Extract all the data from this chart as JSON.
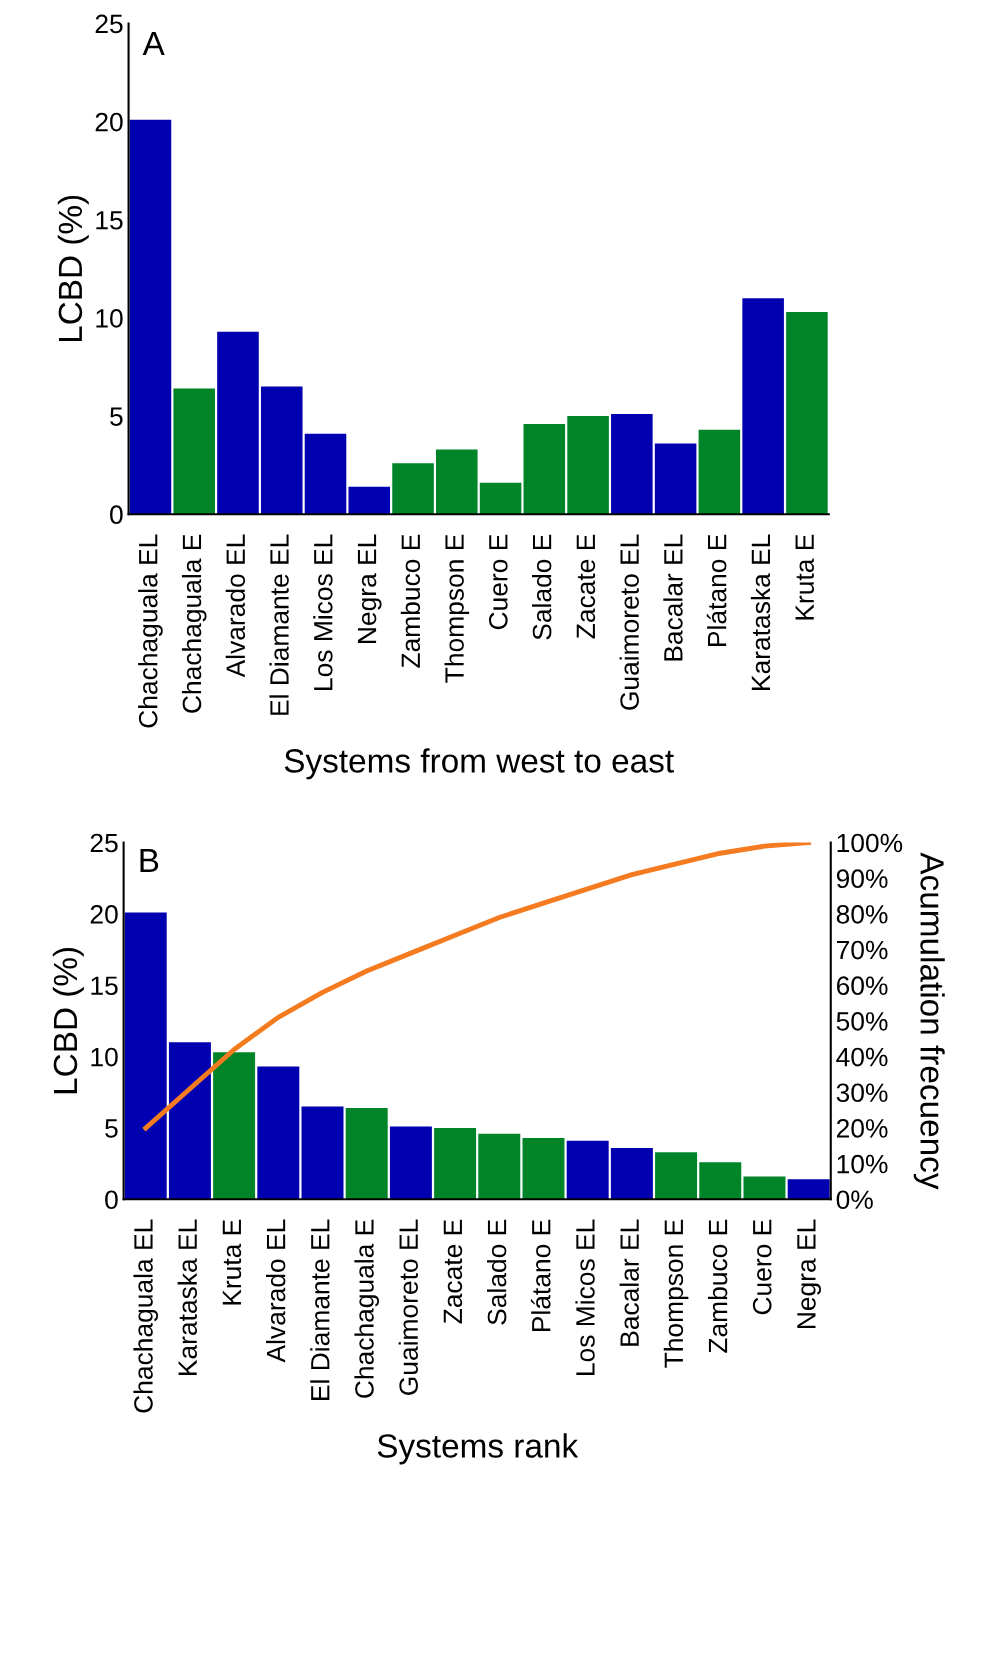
{
  "chart_data": [
    {
      "type": "bar",
      "annotations": [
        "A"
      ],
      "xlabel": "Systems from west to east",
      "ylabel": "LCBD (%)",
      "categories": [
        "Chachaguala EL",
        "Chachaguala E",
        "Alvarado EL",
        "El Diamante EL",
        "Los Micos EL",
        "Negra EL",
        "Zambuco E",
        "Thompson E",
        "Cuero E",
        "Salado E",
        "Zacate E",
        "Guaimoreto EL",
        "Bacalar EL",
        "Plátano E",
        "Karataska EL",
        "Kruta E"
      ],
      "values": [
        20.1,
        6.4,
        9.3,
        6.5,
        4.1,
        1.4,
        2.6,
        3.3,
        1.6,
        4.6,
        5.0,
        5.1,
        3.6,
        4.3,
        11.0,
        10.3
      ],
      "colors": [
        "#0000b0",
        "#008428",
        "#0000b0",
        "#0000b0",
        "#0000b0",
        "#0000b0",
        "#008428",
        "#008428",
        "#008428",
        "#008428",
        "#008428",
        "#0000b0",
        "#0000b0",
        "#008428",
        "#0000b0",
        "#008428"
      ],
      "ylim": [
        0,
        25
      ],
      "yticks": [
        0,
        5,
        10,
        15,
        20,
        25
      ],
      "grid": false,
      "legend": false
    },
    {
      "type": "bar",
      "annotations": [
        "B"
      ],
      "xlabel": "Systems rank",
      "ylabel": "LCBD (%)",
      "y2label": "Acumulation frecuency",
      "categories": [
        "Chachaguala EL",
        "Karataska EL",
        "Kruta E",
        "Alvarado EL",
        "El Diamante EL",
        "Chachaguala E",
        "Guaimoreto EL",
        "Zacate E",
        "Salado E",
        "Plátano E",
        "Los Micos EL",
        "Bacalar EL",
        "Thompson E",
        "Zambuco E",
        "Cuero E",
        "Negra EL"
      ],
      "series": [
        {
          "type": "bar",
          "values": [
            20.1,
            11.0,
            10.3,
            9.3,
            6.5,
            6.4,
            5.1,
            5.0,
            4.6,
            4.3,
            4.1,
            3.6,
            3.3,
            2.6,
            1.6,
            1.4
          ],
          "colors": [
            "#0000b0",
            "#0000b0",
            "#008428",
            "#0000b0",
            "#0000b0",
            "#008428",
            "#0000b0",
            "#008428",
            "#008428",
            "#008428",
            "#0000b0",
            "#0000b0",
            "#008428",
            "#008428",
            "#008428",
            "#0000b0"
          ]
        },
        {
          "type": "line",
          "axis": "y2",
          "color": "#f47b20",
          "values": [
            20,
            31,
            42,
            51,
            58,
            64,
            69,
            74,
            79,
            83,
            87,
            91,
            94,
            97,
            99,
            100
          ]
        }
      ],
      "ylim": [
        0,
        25
      ],
      "yticks": [
        0,
        5,
        10,
        15,
        20,
        25
      ],
      "y2lim": [
        0,
        100
      ],
      "y2ticks": [
        {
          "value": 0,
          "label": "0%"
        },
        {
          "value": 10,
          "label": "10%"
        },
        {
          "value": 20,
          "label": "20%"
        },
        {
          "value": 30,
          "label": "30%"
        },
        {
          "value": 40,
          "label": "40%"
        },
        {
          "value": 50,
          "label": "50%"
        },
        {
          "value": 60,
          "label": "60%"
        },
        {
          "value": 70,
          "label": "70%"
        },
        {
          "value": 80,
          "label": "80%"
        },
        {
          "value": 90,
          "label": "90%"
        },
        {
          "value": 100,
          "label": "100%"
        }
      ],
      "grid": false,
      "legend": false,
      "marker": "none"
    }
  ]
}
